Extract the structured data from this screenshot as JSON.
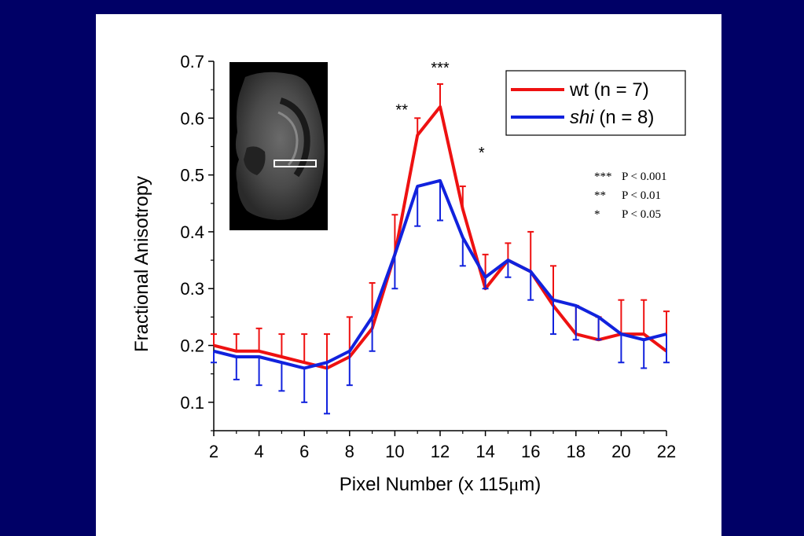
{
  "chart_data": {
    "type": "line",
    "title": "",
    "xlabel_prefix": "Pixel Number (x 115",
    "xlabel_unit_symbol": "μ",
    "xlabel_suffix": "m)",
    "ylabel": "Fractional Anisotropy",
    "xlim": [
      2,
      22
    ],
    "ylim": [
      0.05,
      0.7
    ],
    "xticks": [
      "2",
      "4",
      "6",
      "8",
      "10",
      "12",
      "14",
      "16",
      "18",
      "20",
      "22"
    ],
    "yticks": [
      "0.1",
      "0.2",
      "0.3",
      "0.4",
      "0.5",
      "0.6",
      "0.7"
    ],
    "x": [
      2,
      3,
      4,
      5,
      6,
      7,
      8,
      9,
      10,
      11,
      12,
      13,
      14,
      15,
      16,
      17,
      18,
      19,
      20,
      21,
      22
    ],
    "series": [
      {
        "name_plain": "wt",
        "name_suffix": " (n = 7)",
        "name_italic": false,
        "color": "#ee1111",
        "errorbar_direction": "up",
        "values": [
          0.2,
          0.19,
          0.19,
          0.18,
          0.17,
          0.16,
          0.18,
          0.23,
          0.36,
          0.57,
          0.62,
          0.44,
          0.3,
          0.35,
          0.33,
          0.27,
          0.22,
          0.21,
          0.22,
          0.22,
          0.19
        ],
        "errors": [
          0.02,
          0.03,
          0.04,
          0.04,
          0.05,
          0.06,
          0.07,
          0.08,
          0.07,
          0.03,
          0.04,
          0.04,
          0.06,
          0.03,
          0.07,
          0.07,
          0.05,
          0.04,
          0.06,
          0.06,
          0.07
        ]
      },
      {
        "name_plain": "shi",
        "name_suffix": " (n = 8)",
        "name_italic": true,
        "color": "#1122dd",
        "errorbar_direction": "down",
        "values": [
          0.19,
          0.18,
          0.18,
          0.17,
          0.16,
          0.17,
          0.19,
          0.25,
          0.36,
          0.48,
          0.49,
          0.39,
          0.32,
          0.35,
          0.33,
          0.28,
          0.27,
          0.25,
          0.22,
          0.21,
          0.22
        ],
        "errors": [
          0.02,
          0.04,
          0.05,
          0.05,
          0.06,
          0.09,
          0.06,
          0.06,
          0.06,
          0.07,
          0.07,
          0.05,
          0.02,
          0.03,
          0.05,
          0.06,
          0.06,
          0.04,
          0.05,
          0.05,
          0.05
        ]
      }
    ],
    "significance": [
      {
        "x": 11,
        "label": "**"
      },
      {
        "x": 12,
        "label": "***"
      },
      {
        "x": 13,
        "label": "*"
      }
    ],
    "significance_key": [
      {
        "stars": "***",
        "text": "P < 0.001"
      },
      {
        "stars": "**",
        "text": "P < 0.01"
      },
      {
        "stars": "*",
        "text": "P < 0.05"
      }
    ],
    "legend_position": "top-right",
    "grid": false,
    "inset": "mri-brain-slice"
  }
}
